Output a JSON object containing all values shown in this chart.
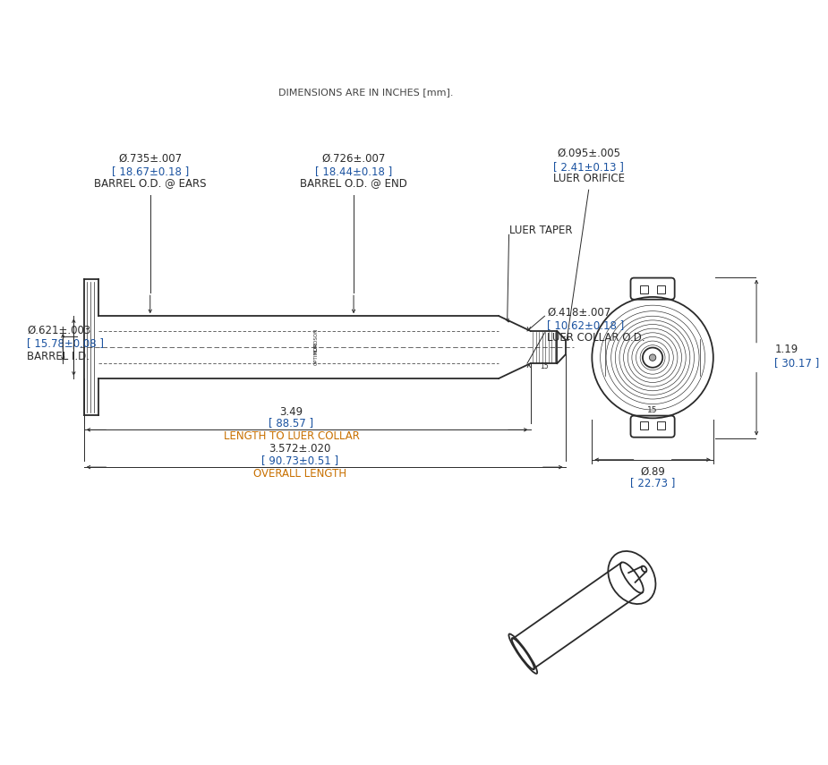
{
  "bg_color": "#ffffff",
  "line_color": "#2a2a2a",
  "dim_color": "#2a2a2a",
  "orange_color": "#c87000",
  "blue_color": "#1a52a0",
  "header_note": "DIMENSIONS ARE IN INCHES [mm].",
  "annotations": {
    "barrel_od_ears": {
      "l1": "Ø.735±.007",
      "l2": "[ 18.67±0.18 ]",
      "l3": "BARREL O.D. @ EARS"
    },
    "barrel_od_end": {
      "l1": "Ø.726±.007",
      "l2": "[ 18.44±0.18 ]",
      "l3": "BARREL O.D. @ END"
    },
    "luer_orifice": {
      "l1": "Ø.095±.005",
      "l2": "[ 2.41±0.13 ]",
      "l3": "LUER ORIFICE"
    },
    "barrel_id": {
      "l1": "Ø.621±.003",
      "l2": "[ 15.78±0.08 ]",
      "l3": "BARREL I.D."
    },
    "luer_taper": {
      "l1": "LUER TAPER"
    },
    "luer_collar": {
      "l1": "Ø.418±.007",
      "l2": "[ 10.62±0.18 ]",
      "l3": "LUER COLLAR O.D."
    },
    "length_luer": {
      "l1": "3.49",
      "l2": "[ 88.57 ]",
      "l3": "LENGTH TO LUER COLLAR"
    },
    "overall": {
      "l1": "3.572±.020",
      "l2": "[ 90.73±0.51 ]",
      "l3": "OVERALL LENGTH"
    },
    "height_fv": {
      "l1": "1.19",
      "l2": "[ 30.17 ]"
    },
    "width_fv": {
      "l1": "Ø.89",
      "l2": "[ 22.73 ]"
    }
  }
}
